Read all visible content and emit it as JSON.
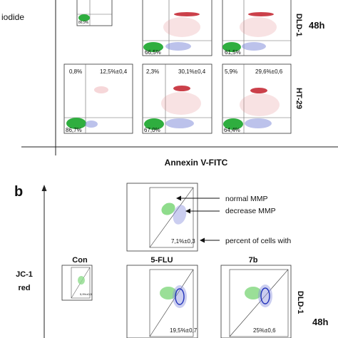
{
  "panel_a": {
    "ylabel_fragment": "iodide",
    "xlabel": "Annexin V-FITC",
    "row_labels": [
      "DLD-1",
      "HT-29"
    ],
    "time_label": "48h",
    "rows": [
      [
        {
          "ll": "86,9%",
          "ul": "",
          "ur": "",
          "partial": true
        },
        {
          "ll": "66,5%",
          "ul": "",
          "ur": ""
        },
        {
          "ll": "61,5%",
          "ul": "",
          "ur": ""
        }
      ],
      [
        {
          "ll": "86,7%",
          "ul": "0,8%",
          "ur": "12,5%±0,4"
        },
        {
          "ll": "67,0%",
          "ul": "2,3%",
          "ur": "30,1%±0,4"
        },
        {
          "ll": "64,4%",
          "ul": "5,9%",
          "ur": "29,6%±0,6"
        }
      ]
    ]
  },
  "panel_b": {
    "letter": "b",
    "ylabel_line1": "JC-1",
    "ylabel_line2": "red",
    "column_labels": [
      "Con",
      "5-FLU",
      "7b"
    ],
    "row_label": "DLD-1",
    "time_label": "48h",
    "example_value": "7,1%±0,3",
    "legend": [
      "normal MMP",
      "decrease MMP",
      "percent of cells with"
    ],
    "values": [
      "5,9%±0,5",
      "19,5%±0,7",
      "25%±0,6"
    ]
  }
}
